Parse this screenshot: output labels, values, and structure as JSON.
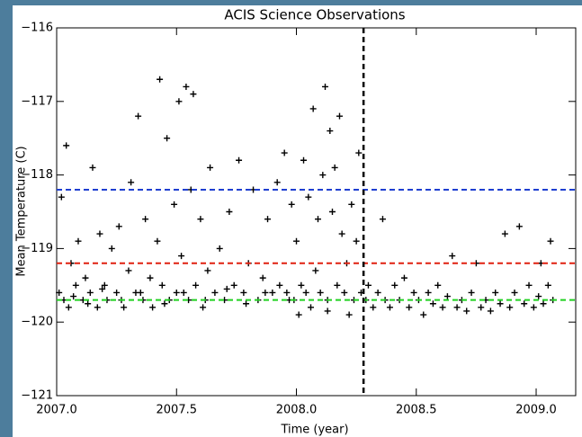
{
  "chart_data": {
    "type": "scatter",
    "title": "ACIS Science Observations",
    "xlabel": "Time (year)",
    "ylabel": "Mean Temperature (C)",
    "xlim": [
      2007.0,
      2009.165
    ],
    "ylim": [
      -121,
      -116
    ],
    "xticks": [
      {
        "value": 2007.0,
        "label": "2007.0"
      },
      {
        "value": 2007.5,
        "label": "2007.5"
      },
      {
        "value": 2008.0,
        "label": "2008.0"
      },
      {
        "value": 2008.5,
        "label": "2008.5"
      },
      {
        "value": 2009.0,
        "label": "2009.0"
      }
    ],
    "yticks": [
      {
        "value": -121,
        "label": "−121"
      },
      {
        "value": -120,
        "label": "−120"
      },
      {
        "value": -119,
        "label": "−119"
      },
      {
        "value": -118,
        "label": "−118"
      },
      {
        "value": -117,
        "label": "−117"
      },
      {
        "value": -116,
        "label": "−116"
      }
    ],
    "color": "#000000",
    "hlines": [
      {
        "value": -118.2,
        "color": "#1f3fd0"
      },
      {
        "value": -119.2,
        "color": "#e02010"
      },
      {
        "value": -119.7,
        "color": "#20d020"
      }
    ],
    "vline": {
      "value": 2008.28,
      "color": "#000000"
    },
    "x": [
      2007.01,
      2007.02,
      2007.03,
      2007.04,
      2007.05,
      2007.06,
      2007.08,
      2007.09,
      2007.11,
      2007.12,
      2007.14,
      2007.15,
      2007.17,
      2007.18,
      2007.2,
      2007.21,
      2007.23,
      2007.25,
      2007.26,
      2007.28,
      2007.3,
      2007.31,
      2007.33,
      2007.34,
      2007.36,
      2007.37,
      2007.39,
      2007.4,
      2007.42,
      2007.43,
      2007.44,
      2007.46,
      2007.47,
      2007.49,
      2007.5,
      2007.51,
      2007.52,
      2007.54,
      2007.55,
      2007.56,
      2007.57,
      2007.58,
      2007.6,
      2007.61,
      2007.63,
      2007.64,
      2007.66,
      2007.68,
      2007.7,
      2007.72,
      2007.74,
      2007.76,
      2007.78,
      2007.8,
      2007.82,
      2007.84,
      2007.86,
      2007.88,
      2007.9,
      2007.92,
      2007.93,
      2007.95,
      2007.96,
      2007.98,
      2007.99,
      2008.0,
      2008.02,
      2008.03,
      2008.04,
      2008.05,
      2008.06,
      2008.07,
      2008.08,
      2008.09,
      2008.1,
      2008.11,
      2008.12,
      2008.13,
      2008.14,
      2008.15,
      2008.16,
      2008.17,
      2008.18,
      2008.19,
      2008.2,
      2008.21,
      2008.22,
      2008.23,
      2008.24,
      2008.25,
      2008.26,
      2008.27,
      2007.07,
      2007.13,
      2007.19,
      2007.27,
      2007.35,
      2007.45,
      2007.53,
      2007.62,
      2007.71,
      2007.79,
      2007.87,
      2007.97,
      2008.01,
      2008.13,
      2008.29,
      2008.3,
      2008.32,
      2008.34,
      2008.36,
      2008.37,
      2008.39,
      2008.41,
      2008.43,
      2008.45,
      2008.47,
      2008.49,
      2008.51,
      2008.53,
      2008.55,
      2008.57,
      2008.59,
      2008.61,
      2008.63,
      2008.65,
      2008.67,
      2008.69,
      2008.71,
      2008.73,
      2008.75,
      2008.77,
      2008.79,
      2008.81,
      2008.83,
      2008.85,
      2008.87,
      2008.89,
      2008.91,
      2008.93,
      2008.95,
      2008.97,
      2008.99,
      2009.01,
      2009.02,
      2009.03,
      2009.05,
      2009.06,
      2009.07
    ],
    "y": [
      -119.6,
      -118.3,
      -119.7,
      -117.6,
      -119.8,
      -119.2,
      -119.5,
      -118.9,
      -119.7,
      -119.4,
      -119.6,
      -117.9,
      -119.8,
      -118.8,
      -119.5,
      -119.7,
      -119.0,
      -119.6,
      -118.7,
      -119.8,
      -119.3,
      -118.1,
      -119.6,
      -117.2,
      -119.7,
      -118.6,
      -119.4,
      -119.8,
      -118.9,
      -116.7,
      -119.5,
      -117.5,
      -119.7,
      -118.4,
      -119.6,
      -117.0,
      -119.1,
      -116.8,
      -119.7,
      -118.2,
      -116.9,
      -119.5,
      -118.6,
      -119.8,
      -119.3,
      -117.9,
      -119.6,
      -119.0,
      -119.7,
      -118.5,
      -119.5,
      -117.8,
      -119.6,
      -119.2,
      -118.2,
      -119.7,
      -119.4,
      -118.6,
      -119.6,
      -118.1,
      -119.5,
      -117.7,
      -119.6,
      -118.4,
      -119.7,
      -118.9,
      -119.5,
      -117.8,
      -119.6,
      -118.3,
      -119.8,
      -117.1,
      -119.3,
      -118.6,
      -119.6,
      -118.0,
      -116.8,
      -119.7,
      -117.4,
      -118.5,
      -117.9,
      -119.5,
      -117.2,
      -118.8,
      -119.6,
      -119.2,
      -119.9,
      -118.4,
      -119.7,
      -118.9,
      -117.7,
      -119.6,
      -119.65,
      -119.75,
      -119.55,
      -119.7,
      -119.6,
      -119.75,
      -119.6,
      -119.7,
      -119.55,
      -119.75,
      -119.6,
      -119.7,
      -119.9,
      -119.85,
      -119.7,
      -119.5,
      -119.8,
      -119.6,
      -118.6,
      -119.7,
      -119.8,
      -119.5,
      -119.7,
      -119.4,
      -119.8,
      -119.6,
      -119.7,
      -119.9,
      -119.6,
      -119.75,
      -119.5,
      -119.8,
      -119.65,
      -119.1,
      -119.8,
      -119.7,
      -119.85,
      -119.6,
      -119.2,
      -119.8,
      -119.7,
      -119.85,
      -119.6,
      -119.75,
      -118.8,
      -119.8,
      -119.6,
      -118.7,
      -119.75,
      -119.5,
      -119.8,
      -119.65,
      -119.2,
      -119.75,
      -119.5,
      -118.9,
      -119.7
    ]
  }
}
